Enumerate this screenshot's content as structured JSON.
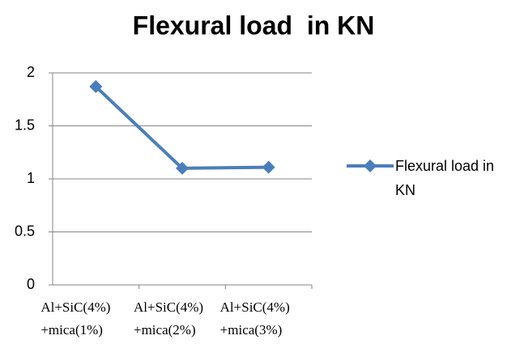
{
  "chart_data": {
    "type": "line",
    "title": "Flexural load  in KN",
    "categories": [
      "Al+SiC(4%) +mica(1%)",
      "Al+SiC(4%) +mica(2%)",
      "Al+SiC(4%) +mica(3%)"
    ],
    "series": [
      {
        "name": "Flexural load in KN",
        "color": "#4a7ebb",
        "values": [
          1.87,
          1.1,
          1.11
        ]
      }
    ],
    "ylim": [
      0,
      2
    ],
    "yticks": [
      0,
      0.5,
      1,
      1.5,
      2
    ],
    "grid": true,
    "legend": "right"
  }
}
